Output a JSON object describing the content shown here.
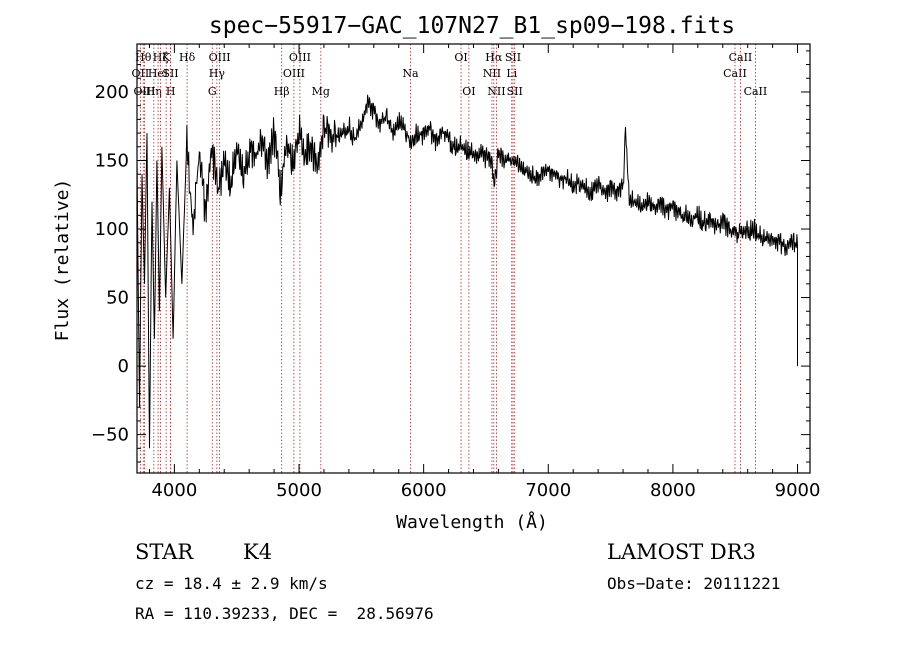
{
  "chart_data": {
    "type": "line",
    "title": "spec−55917−GAC_107N27_B1_sp09−198.fits",
    "xlabel": "Wavelength (Å)",
    "ylabel": "Flux (relative)",
    "xlim": [
      3700,
      9100
    ],
    "ylim": [
      -78,
      235
    ],
    "xticks": [
      4000,
      5000,
      6000,
      7000,
      8000,
      9000
    ],
    "yticks": [
      -50,
      0,
      50,
      100,
      150,
      200
    ],
    "grid": false,
    "series": [
      {
        "name": "flux",
        "color": "#000000",
        "x": [
          3700,
          3720,
          3740,
          3760,
          3780,
          3800,
          3820,
          3840,
          3860,
          3880,
          3900,
          3930,
          3960,
          3990,
          4020,
          4060,
          4100,
          4150,
          4200,
          4250,
          4300,
          4350,
          4400,
          4450,
          4500,
          4550,
          4600,
          4650,
          4700,
          4750,
          4800,
          4850,
          4900,
          4950,
          5000,
          5050,
          5100,
          5150,
          5200,
          5250,
          5300,
          5350,
          5400,
          5450,
          5500,
          5550,
          5600,
          5650,
          5700,
          5750,
          5800,
          5850,
          5900,
          5950,
          6000,
          6050,
          6100,
          6150,
          6200,
          6250,
          6300,
          6350,
          6400,
          6450,
          6500,
          6550,
          6565,
          6600,
          6650,
          6700,
          6750,
          6800,
          6850,
          6900,
          6950,
          7000,
          7050,
          7100,
          7150,
          7200,
          7250,
          7300,
          7350,
          7400,
          7450,
          7500,
          7550,
          7600,
          7620,
          7650,
          7700,
          7750,
          7800,
          7850,
          7900,
          7950,
          8000,
          8050,
          8100,
          8150,
          8200,
          8250,
          8300,
          8350,
          8400,
          8450,
          8500,
          8550,
          8600,
          8650,
          8700,
          8750,
          8800,
          8850,
          8900,
          8950,
          9000,
          9000
        ],
        "values": [
          150,
          -30,
          140,
          60,
          170,
          -60,
          120,
          20,
          150,
          40,
          160,
          50,
          130,
          20,
          150,
          60,
          165,
          100,
          155,
          110,
          160,
          125,
          150,
          135,
          160,
          140,
          158,
          150,
          162,
          148,
          170,
          130,
          165,
          150,
          175,
          155,
          160,
          140,
          175,
          165,
          168,
          172,
          175,
          165,
          180,
          190,
          185,
          175,
          182,
          170,
          178,
          172,
          165,
          170,
          168,
          172,
          162,
          170,
          165,
          160,
          162,
          158,
          156,
          155,
          152,
          150,
          130,
          155,
          148,
          152,
          150,
          145,
          142,
          138,
          140,
          143,
          140,
          135,
          138,
          132,
          135,
          130,
          128,
          132,
          125,
          128,
          126,
          130,
          175,
          122,
          120,
          118,
          122,
          115,
          118,
          112,
          115,
          110,
          112,
          108,
          110,
          105,
          108,
          102,
          105,
          100,
          95,
          102,
          98,
          100,
          95,
          92,
          90,
          92,
          85,
          90,
          88,
          0
        ]
      }
    ],
    "line_markers": [
      {
        "wavelength": 3750,
        "label": "Hθ",
        "row": 1
      },
      {
        "wavelength": 3727,
        "label": "OII",
        "row": 2
      },
      {
        "wavelength": 3760,
        "label": "OIII",
        "row": 3
      },
      {
        "wavelength": 3835,
        "label": "Hη",
        "row": 3
      },
      {
        "wavelength": 3889,
        "label": "Hζ",
        "row": 1
      },
      {
        "wavelength": 3869,
        "label": "HeI",
        "row": 2
      },
      {
        "wavelength": 3934,
        "label": "K",
        "row": 1
      },
      {
        "wavelength": 3970,
        "label": "H",
        "row": 3
      },
      {
        "wavelength": 3969,
        "label": "SII",
        "row": 2
      },
      {
        "wavelength": 4102,
        "label": "Hδ",
        "row": 1
      },
      {
        "wavelength": 4304,
        "label": "G",
        "row": 3
      },
      {
        "wavelength": 4341,
        "label": "Hγ",
        "row": 2
      },
      {
        "wavelength": 4363,
        "label": "OIII",
        "row": 1
      },
      {
        "wavelength": 4861,
        "label": "Hβ",
        "row": 3
      },
      {
        "wavelength": 4959,
        "label": "OIII",
        "row": 2
      },
      {
        "wavelength": 5007,
        "label": "OIII",
        "row": 1
      },
      {
        "wavelength": 5175,
        "label": "Mg",
        "row": 3
      },
      {
        "wavelength": 5894,
        "label": "Na",
        "row": 2
      },
      {
        "wavelength": 6300,
        "label": "OI",
        "row": 1
      },
      {
        "wavelength": 6363,
        "label": "OI",
        "row": 3
      },
      {
        "wavelength": 6548,
        "label": "NII",
        "row": 2
      },
      {
        "wavelength": 6563,
        "label": "Hα",
        "row": 1
      },
      {
        "wavelength": 6584,
        "label": "NII",
        "row": 3
      },
      {
        "wavelength": 6707,
        "label": "Li",
        "row": 2
      },
      {
        "wavelength": 6717,
        "label": "SII",
        "row": 1
      },
      {
        "wavelength": 6731,
        "label": "SII",
        "row": 3
      },
      {
        "wavelength": 8498,
        "label": "CaII",
        "row": 2
      },
      {
        "wavelength": 8542,
        "label": "CaII",
        "row": 1
      },
      {
        "wavelength": 8662,
        "label": "CaII",
        "row": 3
      }
    ]
  },
  "info": {
    "object_class": "STAR",
    "subclass": "K4",
    "survey": "LAMOST DR3",
    "cz": "cz = 18.4 ± 2.9 km/s",
    "obs_date": "Obs−Date: 20111221",
    "radec": "RA = 110.39233, DEC =  28.56976"
  }
}
